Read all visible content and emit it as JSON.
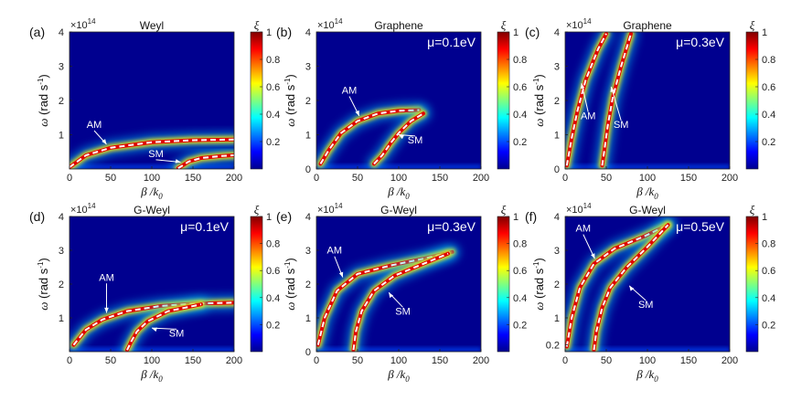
{
  "figure": {
    "domain": "Chart"
  },
  "chart_data": [
    {
      "type": "heatmap",
      "label": "(a)",
      "title": "Weyl",
      "mu": "",
      "xlabel": "β /k0",
      "ylabel": "ω (rad s-1)",
      "yscale": "×10^14",
      "xlim": [
        0,
        200
      ],
      "ylim": [
        0,
        4
      ],
      "xticks": [
        "0",
        "50",
        "100",
        "150",
        "200"
      ],
      "yticks": [
        "1",
        "2",
        "3",
        "4"
      ],
      "colorbar": {
        "label": "ξ",
        "ticks": [
          "0.2",
          "0.4",
          "0.6",
          "0.8",
          "1"
        ],
        "range": [
          0,
          1
        ]
      },
      "curves": [
        {
          "name": "AM",
          "points": [
            [
              0,
              0.05
            ],
            [
              20,
              0.4
            ],
            [
              50,
              0.62
            ],
            [
              100,
              0.78
            ],
            [
              150,
              0.84
            ],
            [
              200,
              0.86
            ]
          ]
        },
        {
          "name": "SM",
          "points": [
            [
              132,
              0.02
            ],
            [
              136,
              0.08
            ],
            [
              145,
              0.22
            ],
            [
              160,
              0.32
            ],
            [
              185,
              0.38
            ],
            [
              200,
              0.4
            ]
          ]
        }
      ],
      "annotations": [
        {
          "text": "AM",
          "x": 30,
          "y": 1.2,
          "tx": 45,
          "ty": 0.72
        },
        {
          "text": "SM",
          "x": 105,
          "y": 0.35,
          "tx": 135,
          "ty": 0.2
        }
      ]
    },
    {
      "type": "heatmap",
      "label": "(b)",
      "title": "Graphene",
      "mu": "μ=0.1eV",
      "xlabel": "β /k0",
      "ylabel": "ω (rad s-1)",
      "yscale": "×10^14",
      "xlim": [
        0,
        200
      ],
      "ylim": [
        0,
        4
      ],
      "xticks": [
        "0",
        "50",
        "100",
        "150",
        "200"
      ],
      "yticks": [
        "0",
        "1",
        "2",
        "3",
        "4"
      ],
      "colorbar": {
        "label": "ξ",
        "ticks": [
          "0.2",
          "0.4",
          "0.6",
          "0.8",
          "1"
        ],
        "range": [
          0,
          1
        ]
      },
      "curves": [
        {
          "name": "AM",
          "points": [
            [
              5,
              0.15
            ],
            [
              15,
              0.55
            ],
            [
              30,
              1.05
            ],
            [
              50,
              1.4
            ],
            [
              75,
              1.62
            ],
            [
              100,
              1.7
            ],
            [
              125,
              1.72
            ]
          ]
        },
        {
          "name": "SM",
          "points": [
            [
              70,
              0.15
            ],
            [
              80,
              0.4
            ],
            [
              90,
              0.75
            ],
            [
              100,
              1.05
            ],
            [
              115,
              1.4
            ],
            [
              130,
              1.62
            ]
          ]
        }
      ],
      "annotations": [
        {
          "text": "AM",
          "x": 40,
          "y": 2.2,
          "tx": 52,
          "ty": 1.55
        },
        {
          "text": "SM",
          "x": 120,
          "y": 0.75,
          "tx": 100,
          "ty": 1.0
        }
      ]
    },
    {
      "type": "heatmap",
      "label": "(c)",
      "title": "Graphene",
      "mu": "μ=0.3eV",
      "xlabel": "β /k0",
      "ylabel": "ω (rad s-1)",
      "yscale": "×10^14",
      "xlim": [
        0,
        200
      ],
      "ylim": [
        0,
        4
      ],
      "xticks": [
        "0",
        "50",
        "100",
        "150",
        "200"
      ],
      "yticks": [
        "0",
        "1",
        "2",
        "3",
        "4"
      ],
      "colorbar": {
        "label": "ξ",
        "ticks": [
          "0.2",
          "0.4",
          "0.6",
          "0.8",
          "1"
        ],
        "range": [
          0,
          1
        ]
      },
      "curves": [
        {
          "name": "AM",
          "points": [
            [
              2,
              0.1
            ],
            [
              8,
              0.9
            ],
            [
              15,
              1.7
            ],
            [
              25,
              2.6
            ],
            [
              40,
              3.5
            ],
            [
              50,
              3.95
            ]
          ]
        },
        {
          "name": "SM",
          "points": [
            [
              45,
              0.1
            ],
            [
              48,
              0.6
            ],
            [
              52,
              1.3
            ],
            [
              58,
              2.1
            ],
            [
              68,
              3.0
            ],
            [
              80,
              3.95
            ]
          ]
        }
      ],
      "annotations": [
        {
          "text": "AM",
          "x": 28,
          "y": 1.45,
          "tx": 20,
          "ty": 2.5
        },
        {
          "text": "SM",
          "x": 68,
          "y": 1.2,
          "tx": 56,
          "ty": 2.4
        }
      ]
    },
    {
      "type": "heatmap",
      "label": "(d)",
      "title": "G-Weyl",
      "mu": "μ=0.1eV",
      "xlabel": "β /k0",
      "ylabel": "ω (rad s-1)",
      "yscale": "×10^14",
      "xlim": [
        0,
        200
      ],
      "ylim": [
        0,
        4
      ],
      "xticks": [
        "0",
        "50",
        "100",
        "150",
        "200"
      ],
      "yticks": [
        "1",
        "2",
        "3",
        "4"
      ],
      "colorbar": {
        "label": "ξ",
        "ticks": [
          "0.2",
          "0.4",
          "0.6",
          "0.8",
          "1"
        ],
        "range": [
          0,
          1
        ]
      },
      "curves": [
        {
          "name": "AM",
          "points": [
            [
              5,
              0.2
            ],
            [
              20,
              0.65
            ],
            [
              40,
              0.95
            ],
            [
              70,
              1.2
            ],
            [
              110,
              1.35
            ],
            [
              150,
              1.42
            ],
            [
              200,
              1.45
            ]
          ]
        },
        {
          "name": "SM",
          "points": [
            [
              70,
              0.05
            ],
            [
              75,
              0.3
            ],
            [
              82,
              0.6
            ],
            [
              95,
              0.9
            ],
            [
              120,
              1.2
            ],
            [
              160,
              1.4
            ]
          ]
        }
      ],
      "annotations": [
        {
          "text": "AM",
          "x": 45,
          "y": 2.1,
          "tx": 45,
          "ty": 1.15
        },
        {
          "text": "SM",
          "x": 130,
          "y": 0.45,
          "tx": 100,
          "ty": 0.7
        }
      ]
    },
    {
      "type": "heatmap",
      "label": "(e)",
      "title": "G-Weyl",
      "mu": "μ=0.3eV",
      "xlabel": "β /k0",
      "ylabel": "ω (rad s-1)",
      "yscale": "×10^14",
      "xlim": [
        0,
        200
      ],
      "ylim": [
        0,
        4
      ],
      "xticks": [
        "0",
        "50",
        "100",
        "150",
        "200"
      ],
      "yticks": [
        "0",
        "1",
        "2",
        "3",
        "4"
      ],
      "colorbar": {
        "label": "ξ",
        "ticks": [
          "0.2",
          "0.4",
          "0.6",
          "0.8",
          "1"
        ],
        "range": [
          0,
          1
        ]
      },
      "curves": [
        {
          "name": "AM",
          "points": [
            [
              2,
              0.2
            ],
            [
              10,
              1.0
            ],
            [
              25,
              1.8
            ],
            [
              50,
              2.3
            ],
            [
              90,
              2.55
            ],
            [
              130,
              2.75
            ],
            [
              165,
              2.95
            ]
          ]
        },
        {
          "name": "SM",
          "points": [
            [
              45,
              0.05
            ],
            [
              48,
              0.6
            ],
            [
              55,
              1.2
            ],
            [
              70,
              1.8
            ],
            [
              95,
              2.25
            ],
            [
              130,
              2.6
            ],
            [
              160,
              2.9
            ]
          ]
        }
      ],
      "annotations": [
        {
          "text": "AM",
          "x": 22,
          "y": 2.9,
          "tx": 32,
          "ty": 2.2
        },
        {
          "text": "SM",
          "x": 105,
          "y": 1.1,
          "tx": 88,
          "ty": 1.75
        }
      ]
    },
    {
      "type": "heatmap",
      "label": "(f)",
      "title": "G-Weyl",
      "mu": "μ=0.5eV",
      "xlabel": "β /k0",
      "ylabel": "ω (rad s-1)",
      "yscale": "×10^14",
      "xlim": [
        0,
        200
      ],
      "ylim": [
        0,
        4
      ],
      "xticks": [
        "0",
        "50",
        "100",
        "150",
        "200"
      ],
      "yticks": [
        "0.2",
        "1",
        "2",
        "3",
        "4"
      ],
      "colorbar": {
        "label": "ξ",
        "ticks": [
          "0.2",
          "0.4",
          "0.6",
          "0.8",
          "1"
        ],
        "range": [
          0,
          1
        ]
      },
      "curves": [
        {
          "name": "AM",
          "points": [
            [
              2,
              0.15
            ],
            [
              8,
              1.0
            ],
            [
              18,
              1.9
            ],
            [
              35,
              2.6
            ],
            [
              60,
              3.05
            ],
            [
              95,
              3.4
            ],
            [
              125,
              3.75
            ]
          ]
        },
        {
          "name": "SM",
          "points": [
            [
              35,
              0.05
            ],
            [
              38,
              0.6
            ],
            [
              45,
              1.3
            ],
            [
              55,
              1.9
            ],
            [
              75,
              2.5
            ],
            [
              100,
              3.1
            ],
            [
              125,
              3.75
            ]
          ]
        }
      ],
      "annotations": [
        {
          "text": "AM",
          "x": 22,
          "y": 3.55,
          "tx": 36,
          "ty": 2.75
        },
        {
          "text": "SM",
          "x": 98,
          "y": 1.3,
          "tx": 78,
          "ty": 1.95
        }
      ]
    }
  ]
}
